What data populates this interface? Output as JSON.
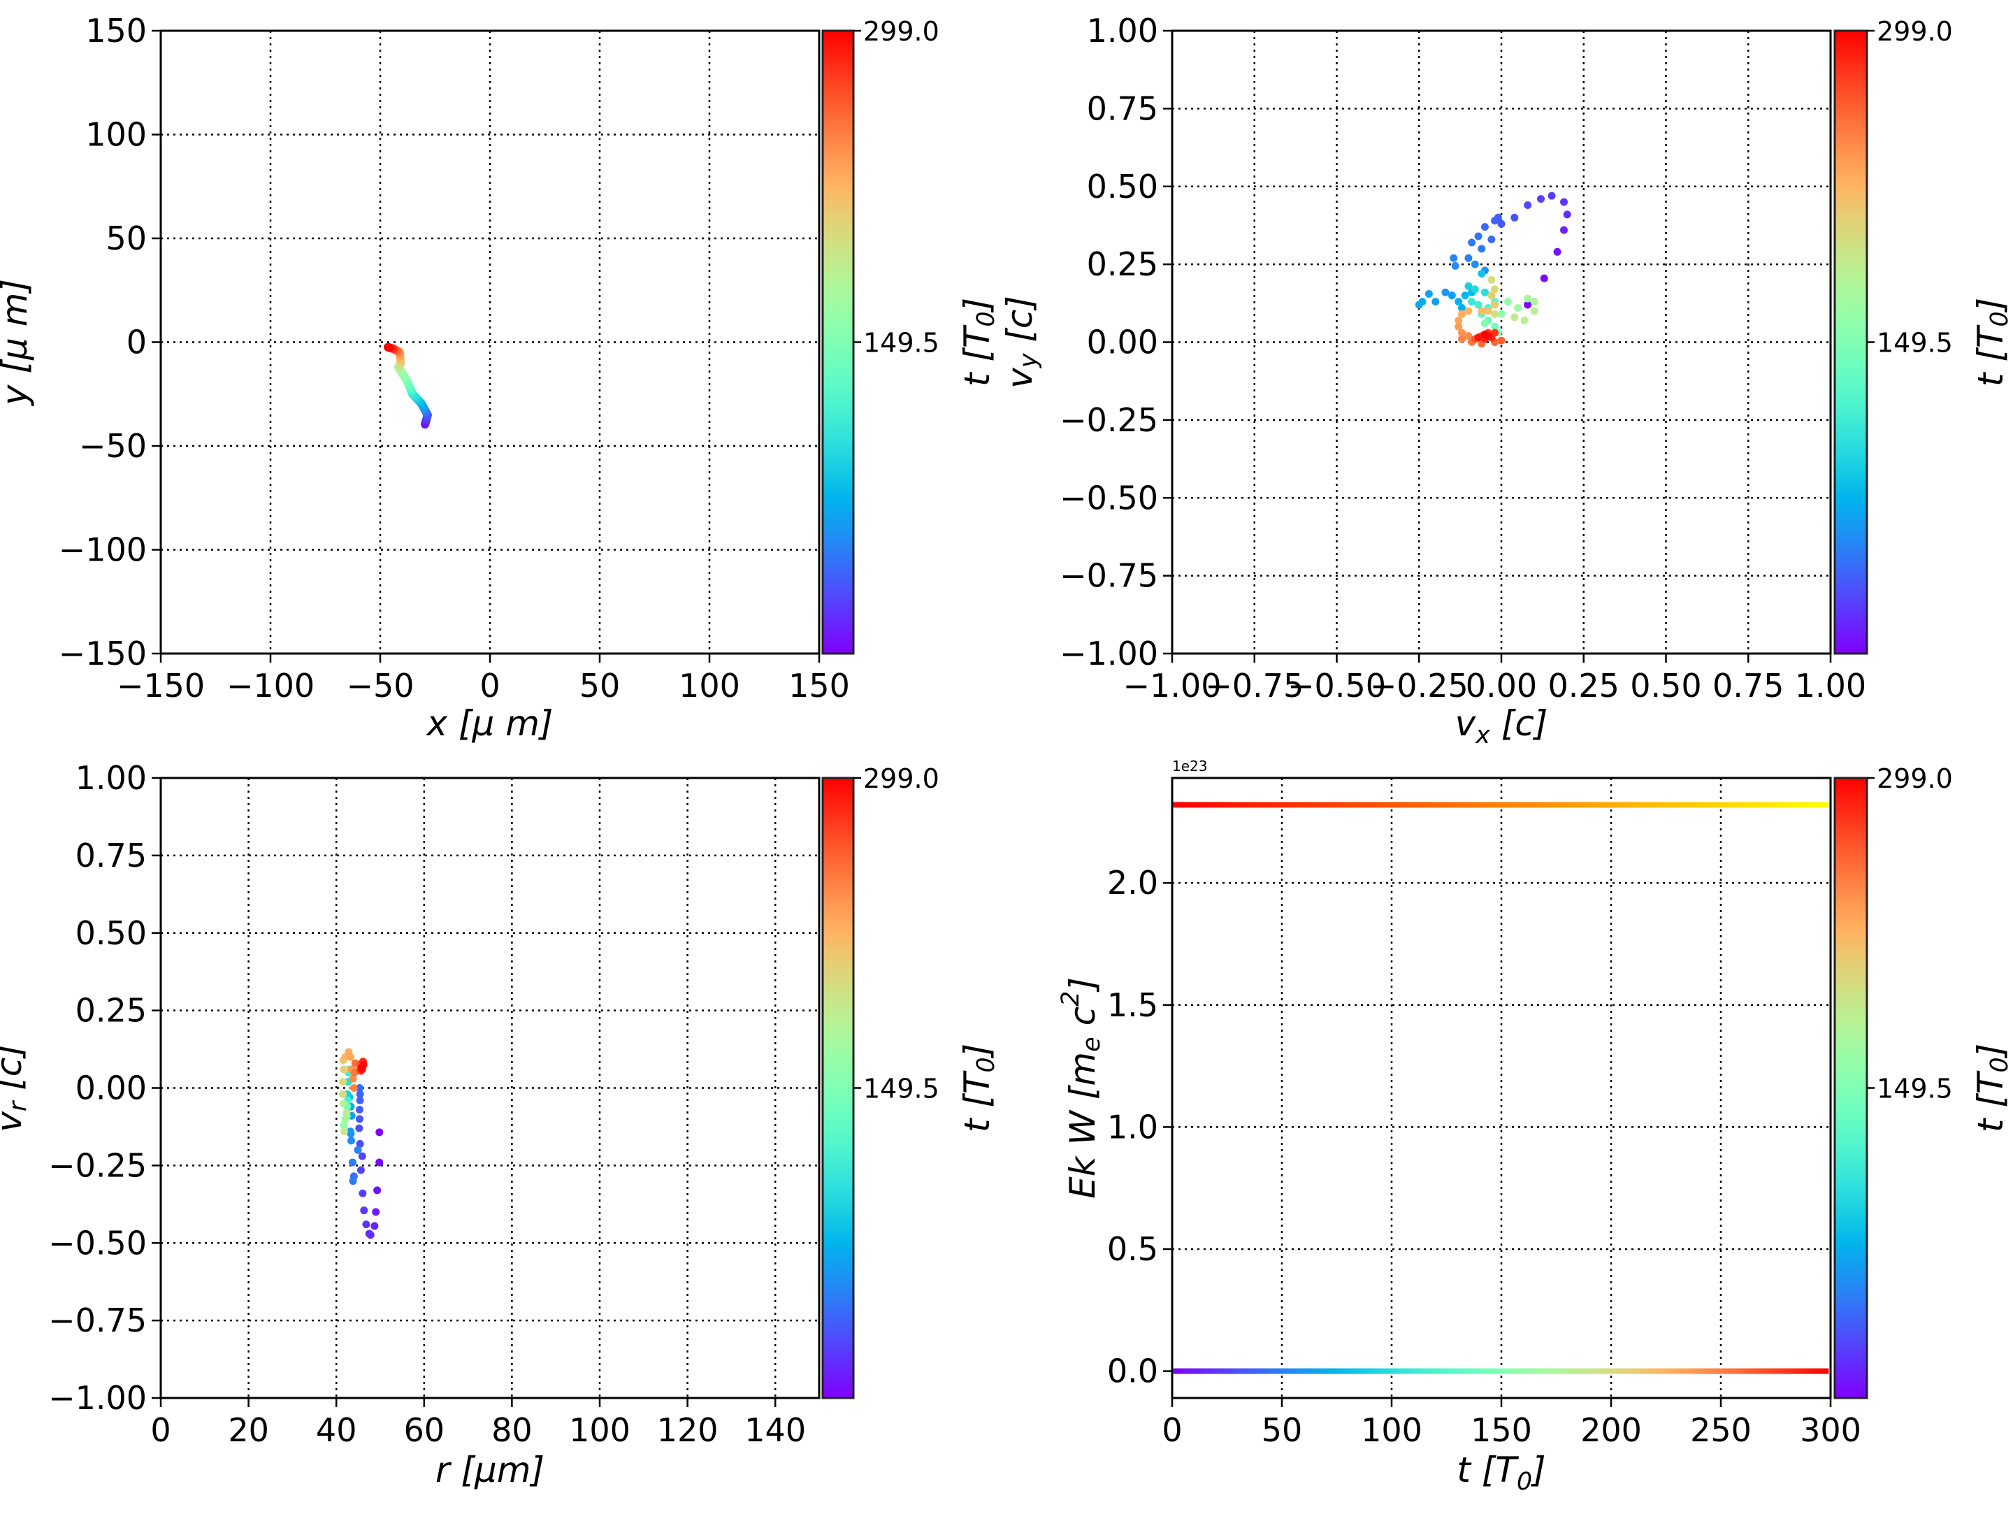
{
  "colormap": "rainbow",
  "chart_data": [
    {
      "id": "xy",
      "type": "line",
      "xlabel": "x  [μ m]",
      "ylabel": "y  [μ m]",
      "xlim": [
        -150,
        150
      ],
      "ylim": [
        -150,
        150
      ],
      "xticks": [
        -150,
        -100,
        -50,
        0,
        50,
        100,
        150
      ],
      "yticks": [
        -150,
        -100,
        -50,
        0,
        50,
        100,
        150
      ],
      "xtick_labels": [
        "−150",
        "−100",
        "−50",
        "0",
        "50",
        "100",
        "150"
      ],
      "ytick_labels": [
        "−150",
        "−100",
        "−50",
        "0",
        "50",
        "100",
        "150"
      ],
      "grid": true,
      "colorbar": {
        "label": "t [T_0]",
        "range": [
          0,
          299
        ],
        "ticks": [
          149.5,
          299.0
        ],
        "tick_labels": [
          "149.5",
          "299.0"
        ],
        "colormap": "rainbow"
      },
      "points": [
        [
          -29.6,
          -39.6,
          0
        ],
        [
          -28.4,
          -35.1,
          30
        ],
        [
          -31.2,
          -29.6,
          70
        ],
        [
          -35.3,
          -25.0,
          105
        ],
        [
          -37.4,
          -19.4,
          140
        ],
        [
          -41.7,
          -12.1,
          175
        ],
        [
          -40.6,
          -10.4,
          195
        ],
        [
          -41.2,
          -4.8,
          240
        ],
        [
          -44.0,
          -3.2,
          270
        ],
        [
          -46.5,
          -2.4,
          299
        ]
      ]
    },
    {
      "id": "vxvy",
      "type": "scatter",
      "xlabel": "v_x [c]",
      "ylabel": "v_y [c]",
      "xlim": [
        -1,
        1
      ],
      "ylim": [
        -1,
        1
      ],
      "xticks": [
        -1,
        -0.75,
        -0.5,
        -0.25,
        0,
        0.25,
        0.5,
        0.75,
        1
      ],
      "yticks": [
        -1,
        -0.75,
        -0.5,
        -0.25,
        0,
        0.25,
        0.5,
        0.75,
        1
      ],
      "xtick_labels": [
        "−1.00",
        "−0.75",
        "−0.50",
        "−0.25",
        "0.00",
        "0.25",
        "0.50",
        "0.75",
        "1.00"
      ],
      "ytick_labels": [
        "−1.00",
        "−0.75",
        "−0.50",
        "−0.25",
        "0.00",
        "0.25",
        "0.50",
        "0.75",
        "1.00"
      ],
      "grid": true,
      "colorbar": {
        "label": "t [T_0]",
        "range": [
          0,
          299
        ],
        "ticks": [
          149.5,
          299.0
        ],
        "tick_labels": [
          "149.5",
          "299.0"
        ],
        "colormap": "rainbow"
      },
      "points": [
        [
          0.08,
          0.12,
          0
        ],
        [
          0.13,
          0.205,
          4
        ],
        [
          0.17,
          0.29,
          8
        ],
        [
          0.19,
          0.36,
          12
        ],
        [
          0.2,
          0.41,
          16
        ],
        [
          0.19,
          0.45,
          19
        ],
        [
          0.153,
          0.47,
          22
        ],
        [
          0.12,
          0.46,
          25
        ],
        [
          0.08,
          0.44,
          28
        ],
        [
          0.04,
          0.4,
          31
        ],
        [
          0.0,
          0.38,
          33
        ],
        [
          -0.01,
          0.4,
          36
        ],
        [
          -0.02,
          0.39,
          38
        ],
        [
          -0.05,
          0.37,
          40
        ],
        [
          -0.03,
          0.33,
          42
        ],
        [
          -0.07,
          0.34,
          44
        ],
        [
          -0.09,
          0.32,
          46
        ],
        [
          -0.06,
          0.3,
          48
        ],
        [
          -0.1,
          0.27,
          50
        ],
        [
          -0.145,
          0.27,
          52
        ],
        [
          -0.14,
          0.245,
          54
        ],
        [
          -0.08,
          0.25,
          56
        ],
        [
          -0.05,
          0.23,
          58
        ],
        [
          -0.17,
          0.16,
          60
        ],
        [
          -0.15,
          0.15,
          62
        ],
        [
          -0.2,
          0.13,
          64
        ],
        [
          -0.22,
          0.155,
          66
        ],
        [
          -0.25,
          0.12,
          68
        ],
        [
          -0.24,
          0.13,
          70
        ],
        [
          -0.13,
          0.13,
          72
        ],
        [
          -0.12,
          0.11,
          74
        ],
        [
          -0.11,
          0.15,
          76
        ],
        [
          -0.09,
          0.16,
          78
        ],
        [
          -0.06,
          0.22,
          85
        ],
        [
          -0.1,
          0.18,
          90
        ],
        [
          -0.08,
          0.17,
          95
        ],
        [
          -0.05,
          0.16,
          100
        ],
        [
          -0.03,
          0.15,
          105
        ],
        [
          -0.09,
          0.13,
          110
        ],
        [
          -0.07,
          0.12,
          115
        ],
        [
          -0.04,
          0.11,
          120
        ],
        [
          -0.02,
          0.13,
          125
        ],
        [
          -0.06,
          0.09,
          130
        ],
        [
          -0.04,
          0.07,
          135
        ],
        [
          -0.02,
          0.05,
          140
        ],
        [
          -0.01,
          0.03,
          145
        ],
        [
          -0.05,
          0.06,
          150
        ],
        [
          0.0,
          0.09,
          155
        ],
        [
          0.02,
          0.13,
          160
        ],
        [
          0.05,
          0.11,
          165
        ],
        [
          0.08,
          0.14,
          170
        ],
        [
          0.1,
          0.13,
          175
        ],
        [
          0.1,
          0.1,
          180
        ],
        [
          0.07,
          0.07,
          185
        ],
        [
          0.04,
          0.08,
          190
        ],
        [
          -0.02,
          0.09,
          196
        ],
        [
          -0.03,
          0.2,
          200
        ],
        [
          -0.02,
          0.17,
          204
        ],
        [
          -0.03,
          0.15,
          208
        ],
        [
          -0.02,
          0.12,
          212
        ],
        [
          -0.04,
          0.1,
          216
        ],
        [
          -0.06,
          0.1,
          220
        ],
        [
          -0.1,
          0.1,
          224
        ],
        [
          -0.12,
          0.09,
          228
        ],
        [
          -0.13,
          0.07,
          232
        ],
        [
          -0.13,
          0.05,
          236
        ],
        [
          -0.12,
          0.03,
          240
        ],
        [
          -0.1,
          0.02,
          244
        ],
        [
          -0.12,
          0.01,
          248
        ],
        [
          -0.09,
          0.0,
          252
        ],
        [
          -0.06,
          -0.005,
          256
        ],
        [
          -0.02,
          0.0,
          260
        ],
        [
          0.0,
          0.005,
          263
        ],
        [
          -0.08,
          0.01,
          268
        ],
        [
          -0.06,
          0.02,
          272
        ],
        [
          -0.04,
          0.03,
          276
        ],
        [
          -0.02,
          0.03,
          280
        ],
        [
          -0.03,
          0.015,
          284
        ],
        [
          -0.05,
          0.01,
          288
        ],
        [
          -0.07,
          0.015,
          292
        ],
        [
          -0.04,
          0.02,
          296
        ],
        [
          -0.05,
          0.025,
          299
        ]
      ]
    },
    {
      "id": "rvr",
      "type": "scatter",
      "xlabel": "r [μm]",
      "ylabel": "v_r [c]",
      "xlim": [
        0,
        150
      ],
      "ylim": [
        -1,
        1
      ],
      "xticks": [
        0,
        20,
        40,
        60,
        80,
        100,
        120,
        140
      ],
      "yticks": [
        -1,
        -0.75,
        -0.5,
        -0.25,
        0,
        0.25,
        0.5,
        0.75,
        1
      ],
      "xtick_labels": [
        "0",
        "20",
        "40",
        "60",
        "80",
        "100",
        "120",
        "140"
      ],
      "ytick_labels": [
        "−1.00",
        "−0.75",
        "−0.50",
        "−0.25",
        "0.00",
        "0.25",
        "0.50",
        "0.75",
        "1.00"
      ],
      "grid": true,
      "colorbar": {
        "label": "t [T_0]",
        "range": [
          0,
          299
        ],
        "ticks": [
          149.5,
          299.0
        ],
        "tick_labels": [
          "149.5",
          "299.0"
        ],
        "colormap": "rainbow"
      },
      "points": [
        [
          49.8,
          -0.143,
          0
        ],
        [
          49.8,
          -0.24,
          3
        ],
        [
          49.3,
          -0.33,
          6
        ],
        [
          49,
          -0.4,
          9
        ],
        [
          48.7,
          -0.445,
          12
        ],
        [
          47.8,
          -0.474,
          15
        ],
        [
          47.5,
          -0.47,
          17
        ],
        [
          46.8,
          -0.44,
          19
        ],
        [
          46.3,
          -0.395,
          21
        ],
        [
          46,
          -0.34,
          23
        ],
        [
          45.6,
          -0.265,
          25
        ],
        [
          45.9,
          -0.22,
          27
        ],
        [
          45.4,
          -0.18,
          29
        ],
        [
          45.2,
          -0.13,
          31
        ],
        [
          45.3,
          -0.1,
          33
        ],
        [
          45.3,
          -0.07,
          35
        ],
        [
          45.4,
          -0.04,
          37
        ],
        [
          45.4,
          -0.02,
          39
        ],
        [
          45.3,
          0.0,
          41
        ],
        [
          44,
          -0.285,
          45
        ],
        [
          43.8,
          -0.3,
          47
        ],
        [
          43.7,
          -0.24,
          49
        ],
        [
          44.9,
          -0.2,
          51
        ],
        [
          43.3,
          -0.147,
          55
        ],
        [
          43.4,
          -0.17,
          57
        ],
        [
          43.2,
          -0.14,
          60
        ],
        [
          43.5,
          -0.09,
          65
        ],
        [
          43.3,
          -0.06,
          70
        ],
        [
          43.0,
          -0.03,
          80
        ],
        [
          42.5,
          -0.02,
          90
        ],
        [
          42.7,
          0.02,
          100
        ],
        [
          42.8,
          0.05,
          110
        ],
        [
          42.6,
          -0.04,
          120
        ],
        [
          42.8,
          0.06,
          130
        ],
        [
          42.5,
          -0.06,
          140
        ],
        [
          42.4,
          -0.09,
          150
        ],
        [
          41.7,
          -0.12,
          160
        ],
        [
          42,
          -0.1,
          170
        ],
        [
          41.6,
          -0.05,
          180
        ],
        [
          42.3,
          -0.08,
          185
        ],
        [
          41.8,
          -0.14,
          190
        ],
        [
          41.5,
          -0.02,
          200
        ],
        [
          41.5,
          0.02,
          205
        ],
        [
          41.7,
          0.06,
          210
        ],
        [
          41.6,
          0.09,
          215
        ],
        [
          42,
          0.1,
          222
        ],
        [
          42.8,
          0.116,
          228
        ],
        [
          43.2,
          0.1,
          232
        ],
        [
          43.5,
          0.06,
          238
        ],
        [
          43.8,
          0.03,
          244
        ],
        [
          44,
          0.0,
          248
        ],
        [
          44.2,
          0.05,
          252
        ],
        [
          44.3,
          0.08,
          256
        ],
        [
          45.3,
          0.06,
          264
        ],
        [
          45.5,
          0.075,
          268
        ],
        [
          45.8,
          0.08,
          272
        ],
        [
          46,
          0.07,
          276
        ],
        [
          45.6,
          0.055,
          280
        ],
        [
          46.1,
          0.085,
          285
        ],
        [
          45.9,
          0.06,
          290
        ],
        [
          46.2,
          0.075,
          295
        ],
        [
          45.7,
          0.065,
          299
        ]
      ]
    },
    {
      "id": "ek",
      "type": "line",
      "xlabel": "t [T_0]",
      "ylabel": "Ek W [m_e c^2]",
      "offset_text": "1e23",
      "xlim": [
        0,
        300
      ],
      "ylim": [
        -0.11,
        2.43
      ],
      "xticks": [
        0,
        50,
        100,
        150,
        200,
        250,
        300
      ],
      "yticks": [
        0,
        0.5,
        1.0,
        1.5,
        2.0
      ],
      "xtick_labels": [
        "0",
        "50",
        "100",
        "150",
        "200",
        "250",
        "300"
      ],
      "ytick_labels": [
        "0.0",
        "0.5",
        "1.0",
        "1.5",
        "2.0"
      ],
      "grid": true,
      "colorbar": {
        "label": "t [T_0]",
        "range": [
          0,
          299
        ],
        "ticks": [
          149.5,
          299.0
        ],
        "tick_labels": [
          "149.5",
          "299.0"
        ],
        "colormap": "rainbow"
      },
      "series": [
        {
          "t_range": [
            1,
            299
          ],
          "value": 2.32,
          "colormap": "autumn"
        },
        {
          "t_range": [
            1,
            299
          ],
          "value": 0.0,
          "colormap": "rainbow"
        }
      ]
    }
  ]
}
